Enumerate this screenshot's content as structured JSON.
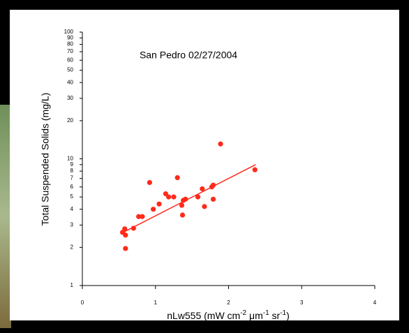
{
  "chart_data": {
    "type": "scatter",
    "log_y": true,
    "color": "#ff2a1a",
    "annotation": "San Pedro 02/27/2004",
    "y_label": "Total Suspended Solids (mg/L)",
    "x_label": [
      {
        "text": "nLw555 (mW cm"
      },
      {
        "text": "-2",
        "sup": true
      },
      {
        "text": " μm"
      },
      {
        "text": "-1",
        "sup": true
      },
      {
        "text": " sr"
      },
      {
        "text": "-1",
        "sup": true
      },
      {
        "text": ")"
      }
    ],
    "xlim": [
      0,
      4
    ],
    "xticks": [
      0,
      1,
      2,
      3,
      4
    ],
    "ylim": [
      1,
      100
    ],
    "yticks": [
      1,
      2,
      3,
      4,
      5,
      6,
      7,
      8,
      9,
      10,
      20,
      30,
      40,
      50,
      60,
      70,
      80,
      90,
      100
    ],
    "x": [
      0.55,
      0.58,
      0.59,
      0.59,
      0.7,
      0.77,
      0.82,
      0.92,
      0.97,
      1.05,
      1.14,
      1.18,
      1.25,
      1.3,
      1.36,
      1.37,
      1.38,
      1.41,
      1.58,
      1.64,
      1.67,
      1.77,
      1.79,
      1.79,
      1.89,
      2.36
    ],
    "values": [
      2.63,
      2.8,
      2.5,
      1.96,
      2.83,
      3.5,
      3.5,
      6.5,
      4.0,
      4.4,
      5.3,
      5.0,
      5.0,
      7.1,
      4.3,
      3.6,
      4.7,
      4.8,
      5.0,
      5.8,
      4.2,
      6.0,
      6.2,
      4.8,
      13.1,
      8.2
    ],
    "trendline": {
      "x": [
        0.52,
        2.37
      ],
      "y": [
        2.56,
        9.0
      ]
    }
  }
}
